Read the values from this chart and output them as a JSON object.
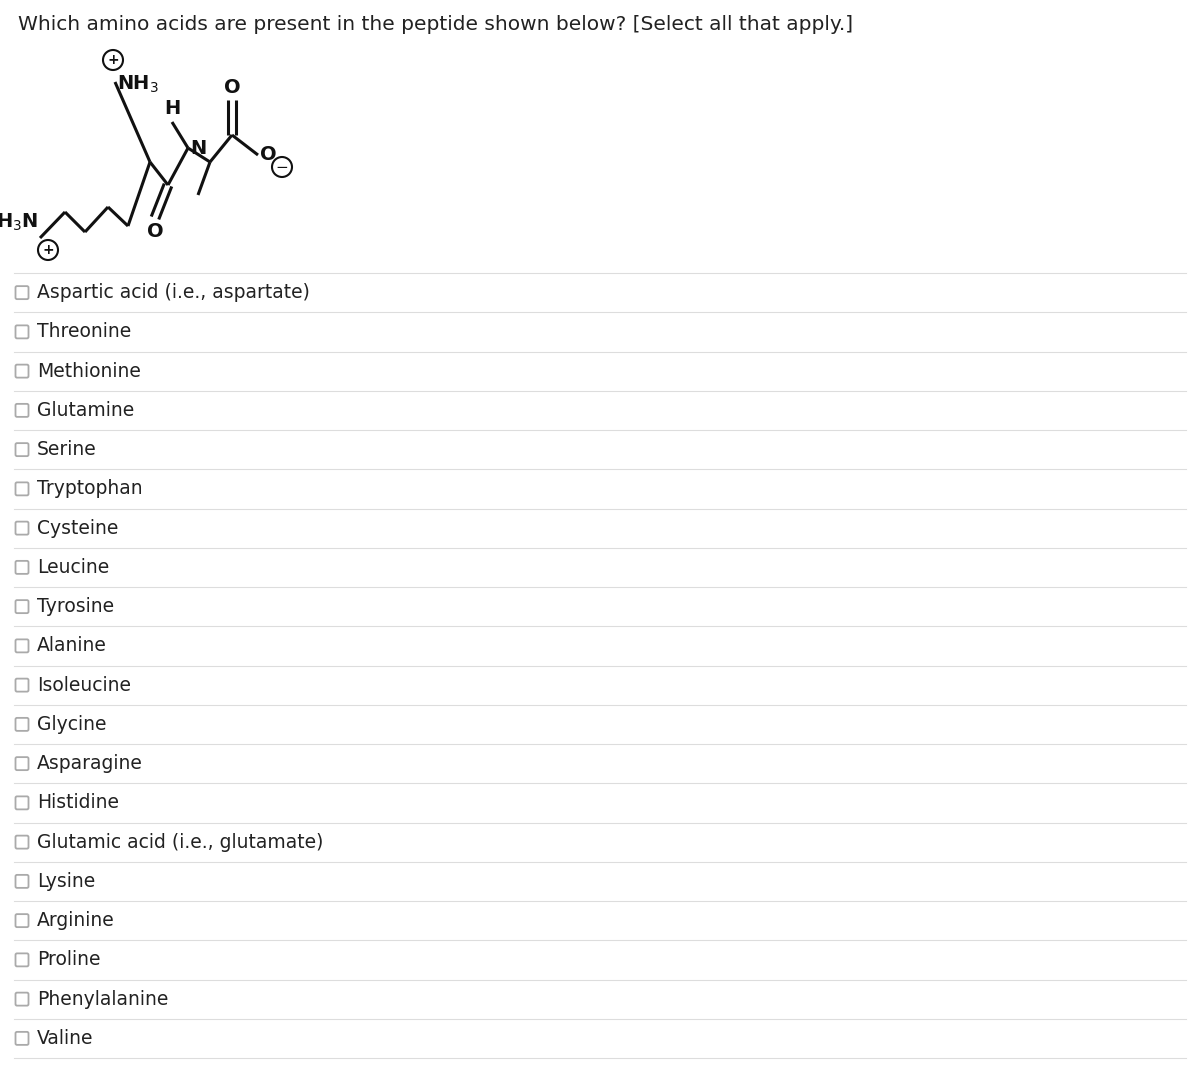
{
  "question": "Which amino acids are present in the peptide shown below? [Select all that apply.]",
  "question_color": "#222222",
  "background_color": "#ffffff",
  "options": [
    "Aspartic acid (i.e., aspartate)",
    "Threonine",
    "Methionine",
    "Glutamine",
    "Serine",
    "Tryptophan",
    "Cysteine",
    "Leucine",
    "Tyrosine",
    "Alanine",
    "Isoleucine",
    "Glycine",
    "Asparagine",
    "Histidine",
    "Glutamic acid (i.e., glutamate)",
    "Lysine",
    "Arginine",
    "Proline",
    "Phenylalanine",
    "Valine"
  ],
  "divider_color": "#dddddd",
  "checkbox_color": "#aaaaaa",
  "text_color": "#222222",
  "option_fontsize": 13.5,
  "question_fontsize": 14.5
}
